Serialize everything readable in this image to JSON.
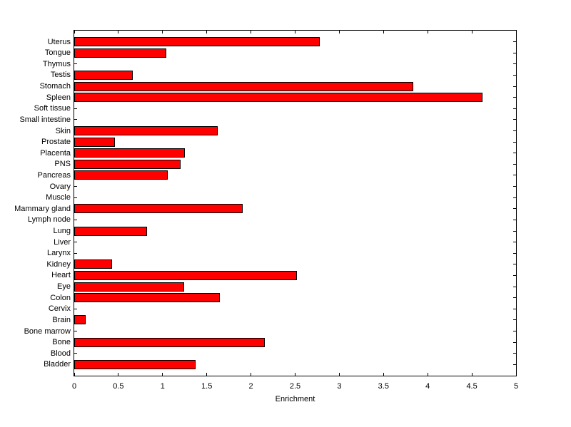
{
  "figure": {
    "background_color": "#ffffff",
    "axis_color": "#000000"
  },
  "chart_data": {
    "type": "bar",
    "orientation": "horizontal",
    "title": "",
    "xlabel": "Enrichment",
    "ylabel": "",
    "xlim": [
      0,
      5
    ],
    "xticks": [
      0,
      0.5,
      1,
      1.5,
      2,
      2.5,
      3,
      3.5,
      4,
      4.5,
      5
    ],
    "xtick_labels": [
      "0",
      "0.5",
      "1",
      "1.5",
      "2",
      "2.5",
      "3",
      "3.5",
      "4",
      "4.5",
      "5"
    ],
    "grid": false,
    "legend": null,
    "bar_color": "#ff0000",
    "bar_edge_color": "#000000",
    "categories_order": "top-to-bottom",
    "categories": [
      "Uterus",
      "Tongue",
      "Thymus",
      "Testis",
      "Stomach",
      "Spleen",
      "Soft tissue",
      "Small intestine",
      "Skin",
      "Prostate",
      "Placenta",
      "PNS",
      "Pancreas",
      "Ovary",
      "Muscle",
      "Mammary gland",
      "Lymph node",
      "Lung",
      "Liver",
      "Larynx",
      "Kidney",
      "Heart",
      "Eye",
      "Colon",
      "Cervix",
      "Brain",
      "Bone marrow",
      "Bone",
      "Blood",
      "Bladder"
    ],
    "values": [
      2.78,
      1.04,
      0,
      0.66,
      3.84,
      4.62,
      0,
      0,
      1.62,
      0.46,
      1.25,
      1.2,
      1.06,
      0,
      0,
      1.91,
      0,
      0.82,
      0,
      0,
      0.43,
      2.52,
      1.24,
      1.65,
      0,
      0.13,
      0,
      2.16,
      0,
      1.37
    ]
  }
}
